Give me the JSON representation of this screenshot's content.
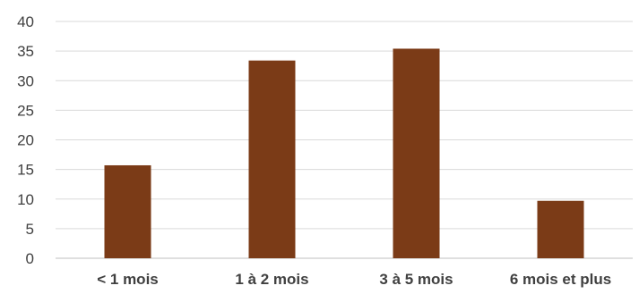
{
  "chart_data": {
    "type": "bar",
    "title": "",
    "xlabel": "",
    "ylabel": "",
    "categories": [
      "< 1 mois",
      "1 à 2 mois",
      "3 à 5 mois",
      "6 mois et plus"
    ],
    "values": [
      15.7,
      33.4,
      35.4,
      9.7
    ],
    "ylim": [
      0,
      40
    ],
    "yticks": [
      "0",
      "5",
      "10",
      "15",
      "20",
      "25",
      "30",
      "35",
      "40"
    ],
    "grid": true,
    "legend": "none",
    "bar_color": "#7b3b17",
    "grid_color": "#d9d9d9",
    "text_color": "#404040"
  }
}
